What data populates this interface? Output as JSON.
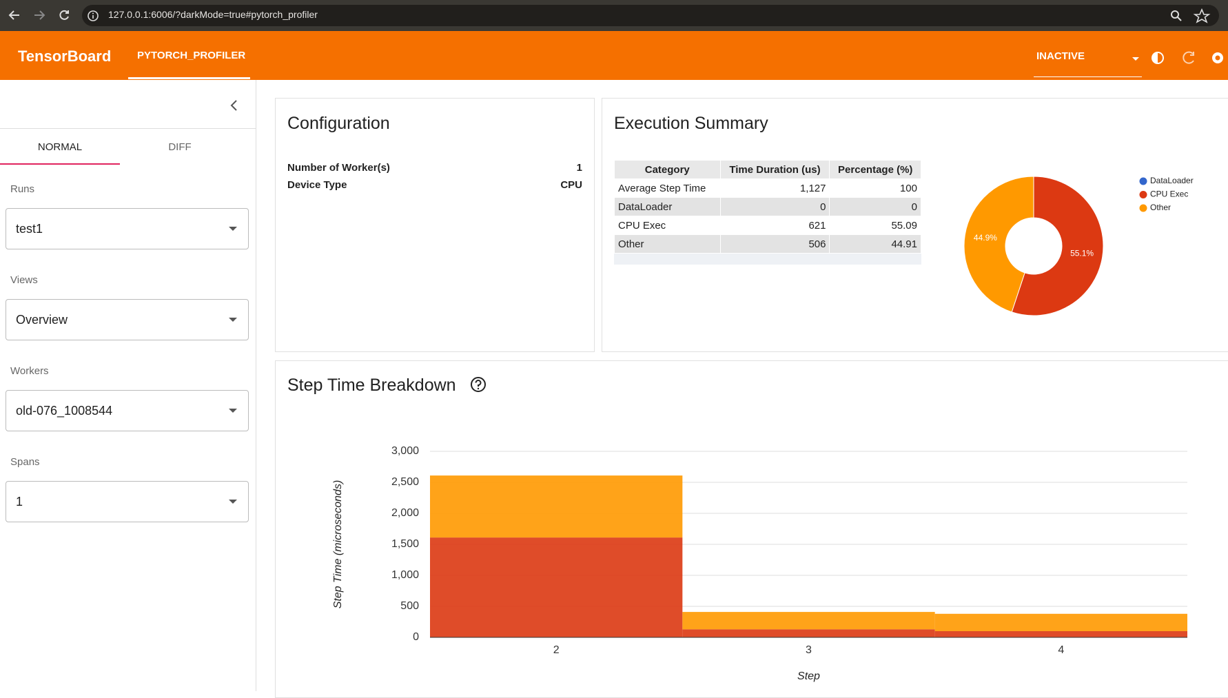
{
  "browser": {
    "url": "127.0.0.1:6006/?darkMode=true#pytorch_profiler"
  },
  "header": {
    "title": "TensorBoard",
    "tab": "PYTORCH_PROFILER",
    "status": "INACTIVE"
  },
  "sidebar": {
    "tabs": [
      "NORMAL",
      "DIFF"
    ],
    "fields": [
      {
        "label": "Runs",
        "value": "test1"
      },
      {
        "label": "Views",
        "value": "Overview"
      },
      {
        "label": "Workers",
        "value": "old-076_1008544"
      },
      {
        "label": "Spans",
        "value": "1"
      }
    ]
  },
  "configuration": {
    "title": "Configuration",
    "rows": [
      [
        "Number of Worker(s)",
        1
      ],
      [
        "Device Type",
        "CPU"
      ]
    ]
  },
  "execution_summary": {
    "title": "Execution Summary",
    "table": {
      "columns": [
        "Category",
        "Time Duration (us)",
        "Percentage (%)"
      ],
      "rows": [
        [
          "Average Step Time",
          "1,127",
          100
        ],
        [
          "DataLoader",
          0,
          0
        ],
        [
          "CPU Exec",
          621,
          55.09
        ],
        [
          "Other",
          506,
          44.91
        ]
      ]
    }
  },
  "step_time_breakdown": {
    "title": "Step Time Breakdown"
  },
  "chart_data": [
    {
      "type": "pie",
      "categories": [
        "DataLoader",
        "CPU Exec",
        "Other"
      ],
      "values": [
        0,
        55.1,
        44.9
      ],
      "value_labels": [
        null,
        "55.1%",
        "44.9%"
      ],
      "colors": [
        "#3366cc",
        "#dc3912",
        "#ff9900"
      ],
      "donut": true,
      "legend": "right"
    },
    {
      "type": "stacked_bar",
      "xlabel": "Step",
      "ylabel": "Step Time (microseconds)",
      "categories": [
        "2",
        "3",
        "4"
      ],
      "series": [
        {
          "color": "#dc3912",
          "values": [
            1610,
            130,
            100
          ]
        },
        {
          "color": "#ff9900",
          "values": [
            1000,
            280,
            280
          ]
        }
      ],
      "ylim": [
        0,
        3000
      ],
      "yticks": [
        0,
        500,
        {
          "value": 1000,
          "label": "1,000"
        },
        {
          "value": 1500,
          "label": "1,500"
        },
        {
          "value": 2000,
          "label": "2,000"
        },
        {
          "value": 2500,
          "label": "2,500"
        },
        {
          "value": 3000,
          "label": "3,000"
        }
      ],
      "grid": true
    }
  ]
}
